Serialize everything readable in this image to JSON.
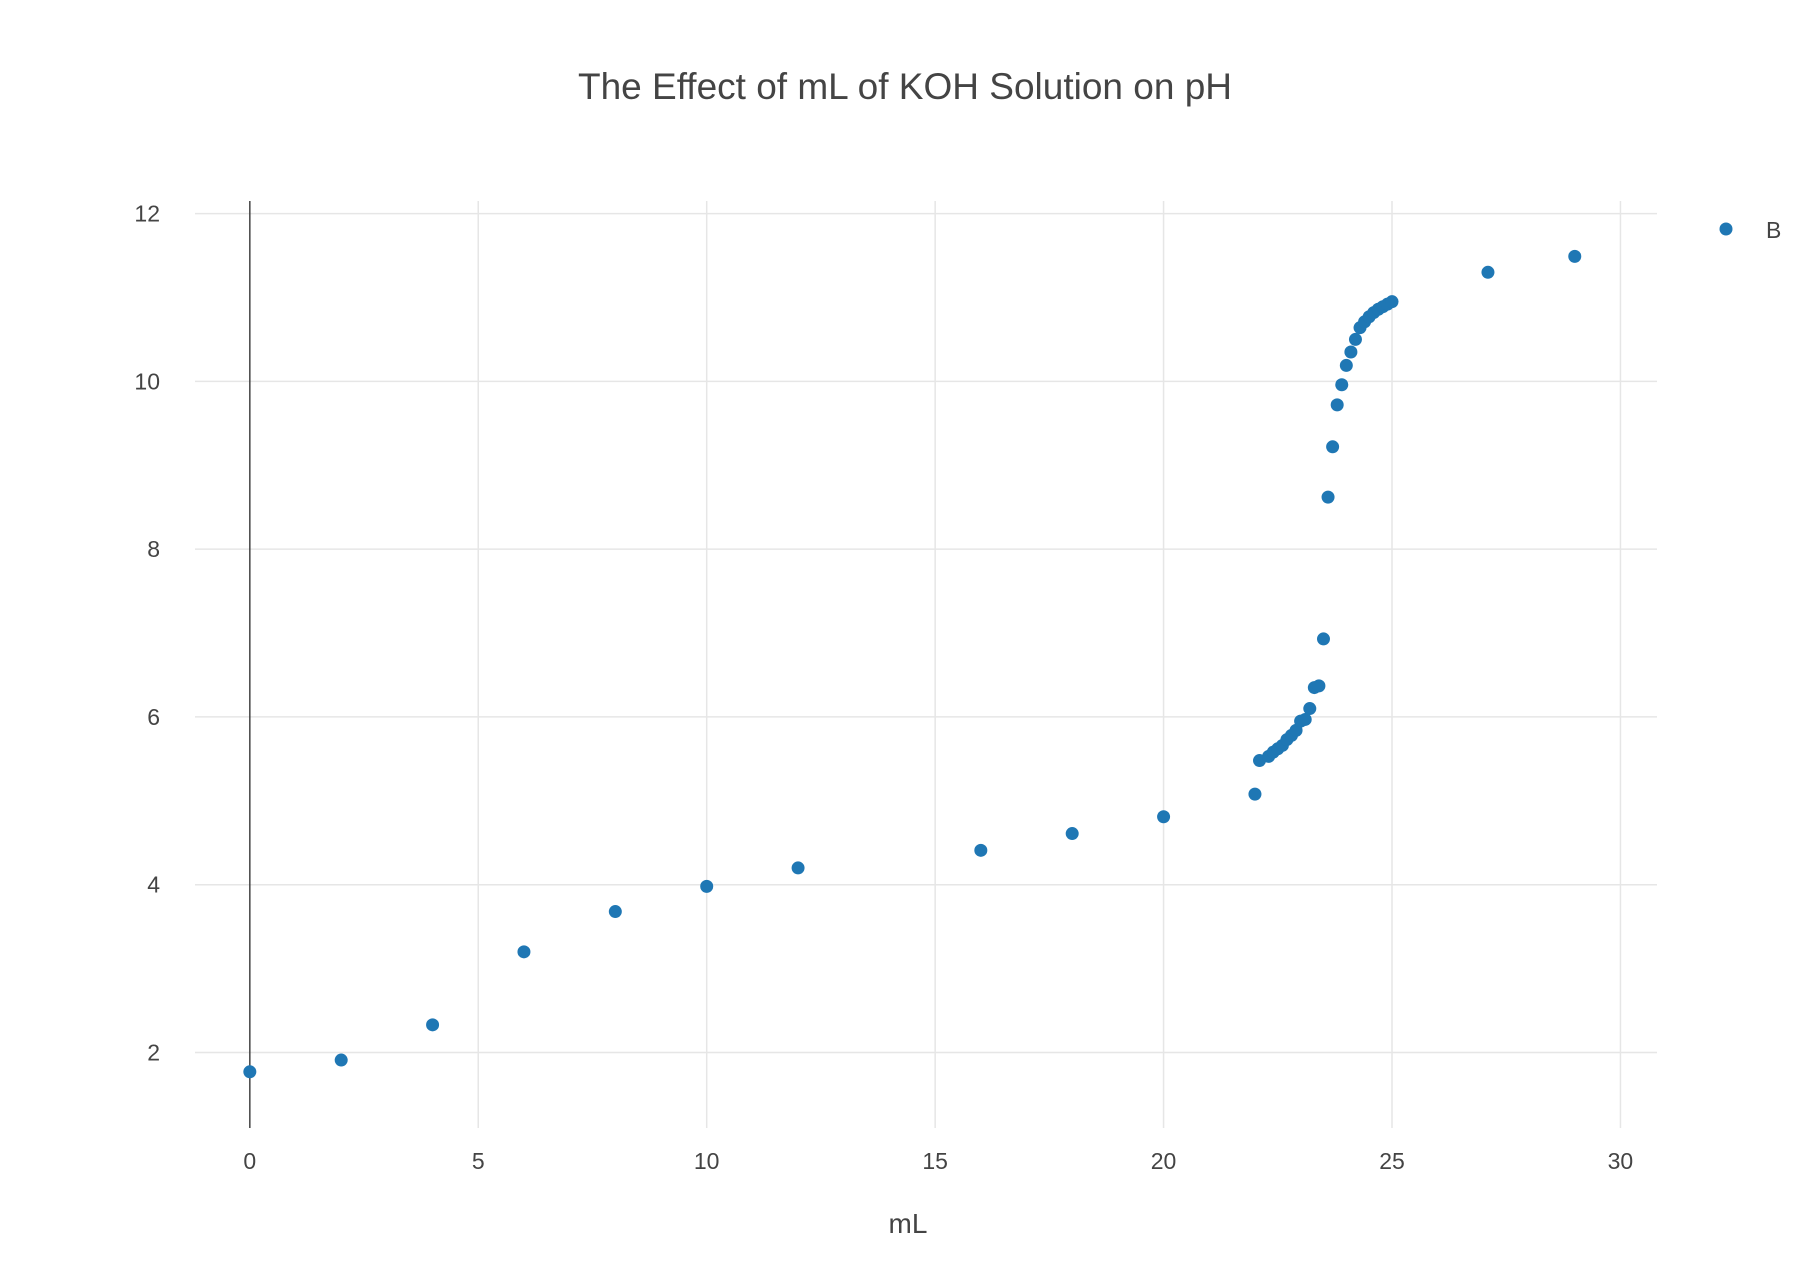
{
  "chart_data": {
    "type": "scatter",
    "title": "The Effect of mL of KOH Solution on pH",
    "xlabel": "mL",
    "ylabel": "",
    "xlim": [
      -1.2,
      30.8
    ],
    "ylim": [
      1.1,
      12.15
    ],
    "xticks": [
      0,
      5,
      10,
      15,
      20,
      25,
      30
    ],
    "yticks": [
      2,
      4,
      6,
      8,
      10,
      12
    ],
    "grid": true,
    "legend_position": "top-right",
    "series": [
      {
        "name": "B",
        "color": "#1f77b4",
        "x": [
          0,
          2,
          4,
          6,
          8,
          10,
          12,
          16,
          18,
          20,
          22,
          22.1,
          22.3,
          22.4,
          22.5,
          22.6,
          22.7,
          22.8,
          22.9,
          23.0,
          23.1,
          23.2,
          23.3,
          23.4,
          23.5,
          23.6,
          23.7,
          23.8,
          23.9,
          24.0,
          24.1,
          24.2,
          24.3,
          24.4,
          24.5,
          24.6,
          24.7,
          24.8,
          24.9,
          25.0,
          27.1,
          29.0
        ],
        "y": [
          1.77,
          1.91,
          2.33,
          3.2,
          3.68,
          3.98,
          4.2,
          4.41,
          4.61,
          4.81,
          5.08,
          5.48,
          5.53,
          5.58,
          5.62,
          5.66,
          5.73,
          5.78,
          5.84,
          5.95,
          5.97,
          6.1,
          6.35,
          6.37,
          6.93,
          8.62,
          9.22,
          9.72,
          9.96,
          10.19,
          10.35,
          10.5,
          10.64,
          10.71,
          10.77,
          10.82,
          10.86,
          10.89,
          10.92,
          10.95,
          11.3,
          11.49
        ]
      }
    ]
  }
}
